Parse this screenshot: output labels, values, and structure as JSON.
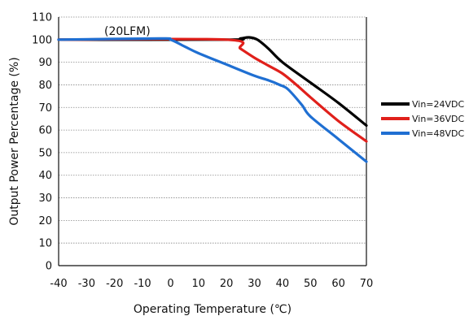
{
  "chart_data": {
    "type": "line",
    "xlabel": "Operating Temperature (℃)",
    "ylabel": "Output Power Percentage (%)",
    "xlim": [
      -40,
      70
    ],
    "ylim": [
      0,
      110
    ],
    "x_ticks": [
      -40,
      -30,
      -20,
      -10,
      0,
      10,
      20,
      30,
      40,
      50,
      60,
      70
    ],
    "y_ticks": [
      0,
      10,
      20,
      30,
      40,
      50,
      60,
      70,
      80,
      90,
      100,
      110
    ],
    "grid": "horizontal",
    "legend_position": "right",
    "annotation": "(20LFM)",
    "series": [
      {
        "name": "Vin=24VDC",
        "color": "#000000",
        "points": [
          [
            -40,
            100
          ],
          [
            20,
            100
          ],
          [
            25,
            100.5
          ],
          [
            28,
            101
          ],
          [
            31,
            100
          ],
          [
            35,
            96
          ],
          [
            40,
            90
          ],
          [
            50,
            81
          ],
          [
            60,
            72
          ],
          [
            70,
            62
          ]
        ]
      },
      {
        "name": "Vin=36VDC",
        "color": "#e0201b",
        "points": [
          [
            -40,
            100
          ],
          [
            20,
            100
          ],
          [
            25,
            96
          ],
          [
            30,
            92
          ],
          [
            35,
            88.5
          ],
          [
            40,
            85
          ],
          [
            45,
            80
          ],
          [
            50,
            74.5
          ],
          [
            60,
            64
          ],
          [
            70,
            55
          ]
        ]
      },
      {
        "name": "Vin=48VDC",
        "color": "#1f6fd2",
        "points": [
          [
            -40,
            100
          ],
          [
            -4,
            100.5
          ],
          [
            0,
            100
          ],
          [
            5,
            97
          ],
          [
            10,
            94
          ],
          [
            20,
            89
          ],
          [
            30,
            84
          ],
          [
            35,
            82
          ],
          [
            39,
            80
          ],
          [
            42,
            78
          ],
          [
            47,
            71
          ],
          [
            50,
            66
          ],
          [
            60,
            56
          ],
          [
            70,
            46
          ]
        ]
      }
    ]
  }
}
